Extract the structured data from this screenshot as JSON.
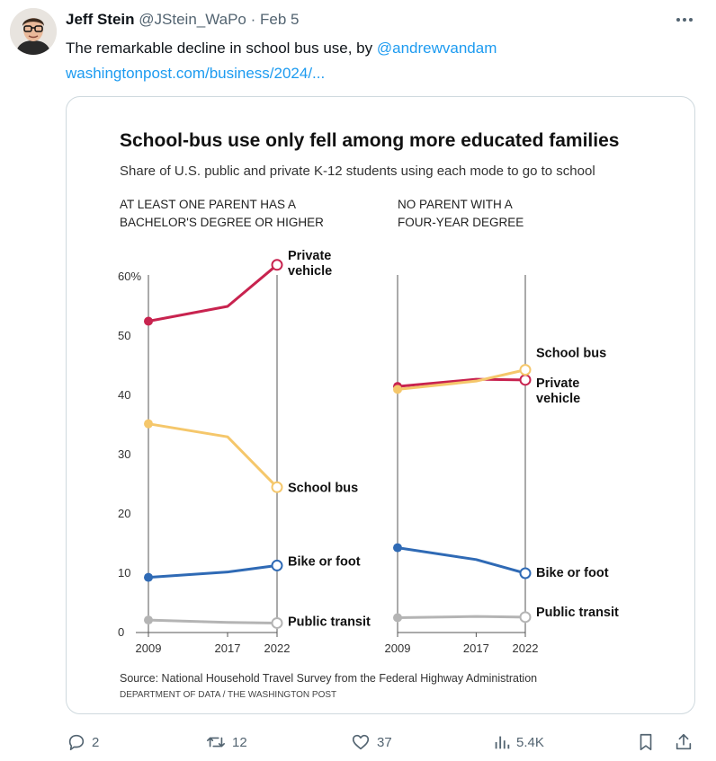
{
  "tweet": {
    "author_name": "Jeff Stein",
    "handle": "@JStein_WaPo",
    "separator": "·",
    "date": "Feb 5",
    "text": "The remarkable decline in school bus use, by ",
    "mention": "@andrewvandam",
    "url_text": "washingtonpost.com/business/2024/..."
  },
  "icons": {
    "more": "more-horizontal-icon",
    "reply": "reply-icon",
    "retweet": "retweet-icon",
    "like": "heart-icon",
    "views": "views-icon",
    "bookmark": "bookmark-icon",
    "share": "share-icon"
  },
  "actions": {
    "reply_count": "2",
    "retweet_count": "12",
    "like_count": "37",
    "views_count": "5.4K"
  },
  "chart_data": {
    "type": "line",
    "title": "School-bus use only fell among more educated families",
    "subtitle": "Share of U.S. public and private K-12 students using each mode to go to school",
    "source": "Source: National Household Travel Survey from the Federal Highway Administration",
    "credit": "DEPARTMENT OF DATA / THE WASHINGTON POST",
    "x": [
      2009,
      2017,
      2022
    ],
    "ylim": [
      0,
      60
    ],
    "yticks": [
      0,
      10,
      20,
      30,
      40,
      50,
      60
    ],
    "ytick_labels": [
      "0",
      "10",
      "20",
      "30",
      "40",
      "50",
      "60%"
    ],
    "grid": false,
    "colors": {
      "private_vehicle": "#c8234f",
      "school_bus": "#f5c76b",
      "bike_or_foot": "#2f6ab5",
      "public_transit": "#b4b4b4"
    },
    "panels": [
      {
        "label_lines": [
          "AT LEAST ONE PARENT HAS A",
          "BACHELOR'S DEGREE OR HIGHER"
        ],
        "series": [
          {
            "key": "private_vehicle",
            "label_lines": [
              "Private",
              "vehicle"
            ],
            "values": [
              52.5,
              55,
              62
            ]
          },
          {
            "key": "school_bus",
            "label_lines": [
              "School bus"
            ],
            "values": [
              35.2,
              33,
              24.5
            ]
          },
          {
            "key": "bike_or_foot",
            "label_lines": [
              "Bike or foot"
            ],
            "values": [
              9.3,
              10.2,
              11.3
            ]
          },
          {
            "key": "public_transit",
            "label_lines": [
              "Public transit"
            ],
            "values": [
              2.1,
              1.7,
              1.6
            ]
          }
        ]
      },
      {
        "label_lines": [
          "NO PARENT WITH A",
          "FOUR-YEAR DEGREE"
        ],
        "series": [
          {
            "key": "private_vehicle",
            "label_lines": [
              "Private",
              "vehicle"
            ],
            "values": [
              41.5,
              42.7,
              42.6
            ]
          },
          {
            "key": "school_bus",
            "label_lines": [
              "School bus"
            ],
            "values": [
              41,
              42.4,
              44.3
            ]
          },
          {
            "key": "bike_or_foot",
            "label_lines": [
              "Bike or foot"
            ],
            "values": [
              14.3,
              12.3,
              10
            ]
          },
          {
            "key": "public_transit",
            "label_lines": [
              "Public transit"
            ],
            "values": [
              2.5,
              2.7,
              2.6
            ]
          }
        ]
      }
    ]
  }
}
